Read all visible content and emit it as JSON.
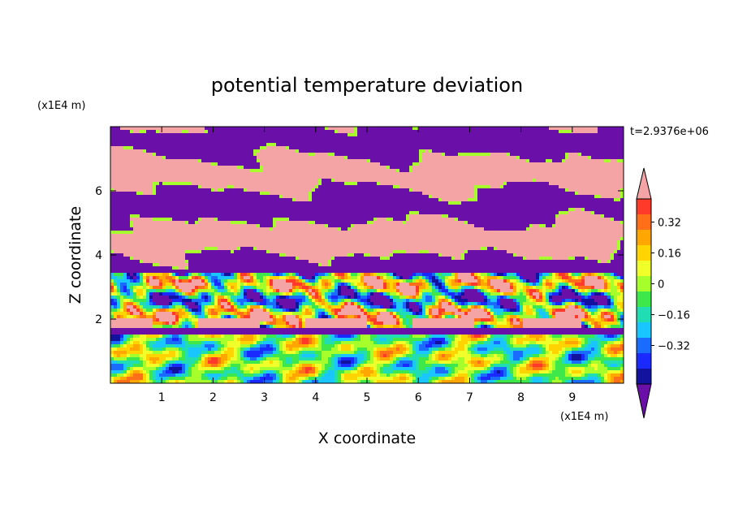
{
  "chart_data": {
    "type": "heatmap",
    "title": "potential temperature deviation",
    "xlabel": "X coordinate",
    "ylabel": "Z coordinate",
    "x_unit": "(x1E4 m)",
    "y_unit": "(x1E4 m)",
    "time_label": "t=2.9376e+06",
    "xlim": [
      0,
      10
    ],
    "ylim": [
      0,
      8
    ],
    "x_ticks": [
      "1",
      "2",
      "3",
      "4",
      "5",
      "6",
      "7",
      "8",
      "9"
    ],
    "y_ticks": [
      "2",
      "4",
      "6"
    ],
    "colorbar": {
      "levels": [
        "0.32",
        "0.16",
        "0",
        "-0.16",
        "-0.32"
      ],
      "level_labels": [
        "0.32",
        "0.16",
        "0",
        "−0.16",
        "−0.32"
      ],
      "colors": [
        "#f4a4a4",
        "#ff3a2a",
        "#ff6f1a",
        "#ffa600",
        "#ffd400",
        "#f0ff2a",
        "#a6ff2a",
        "#3fe84a",
        "#20ddb4",
        "#1ac6ff",
        "#1a6cff",
        "#1a2aff",
        "#12129e",
        "#6a10a8"
      ],
      "over_color": "#f4a4a4",
      "under_color": "#6a10a8"
    },
    "regions": [
      {
        "z_range": [
          3.5,
          8.0
        ],
        "pattern": "alternating horizontal layers",
        "values": [
          "above 0.4",
          "below -0.4"
        ]
      },
      {
        "z_range": [
          1.6,
          3.5
        ],
        "pattern": "turbulent mixing layer",
        "values": [
          "-0.4 to 0.4"
        ]
      },
      {
        "z_range": [
          0.0,
          1.6
        ],
        "pattern": "eddies near ground",
        "values": [
          "-0.32 to 0.32"
        ]
      }
    ]
  }
}
